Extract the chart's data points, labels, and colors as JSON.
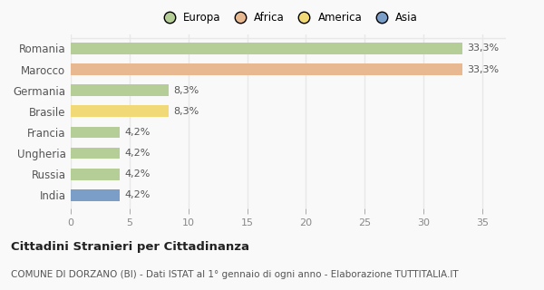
{
  "categories": [
    "Romania",
    "Marocco",
    "Germania",
    "Brasile",
    "Francia",
    "Ungheria",
    "Russia",
    "India"
  ],
  "values": [
    33.3,
    33.3,
    8.3,
    8.3,
    4.2,
    4.2,
    4.2,
    4.2
  ],
  "colors": [
    "#b5cd96",
    "#e8b990",
    "#b5cd96",
    "#f2d978",
    "#b5cd96",
    "#b5cd96",
    "#b5cd96",
    "#7b9ec8"
  ],
  "labels": [
    "33,3%",
    "33,3%",
    "8,3%",
    "8,3%",
    "4,2%",
    "4,2%",
    "4,2%",
    "4,2%"
  ],
  "legend_labels": [
    "Europa",
    "Africa",
    "America",
    "Asia"
  ],
  "legend_colors": [
    "#b5cd96",
    "#e8b990",
    "#f2d978",
    "#7b9ec8"
  ],
  "title": "Cittadini Stranieri per Cittadinanza",
  "subtitle": "COMUNE DI DORZANO (BI) - Dati ISTAT al 1° gennaio di ogni anno - Elaborazione TUTTITALIA.IT",
  "xlim": [
    0,
    37
  ],
  "xticks": [
    0,
    5,
    10,
    15,
    20,
    25,
    30,
    35
  ],
  "background_color": "#f9f9f9",
  "grid_color": "#e8e8e8",
  "bar_height": 0.55,
  "figsize": [
    6.0,
    3.2
  ],
  "dpi": 100
}
